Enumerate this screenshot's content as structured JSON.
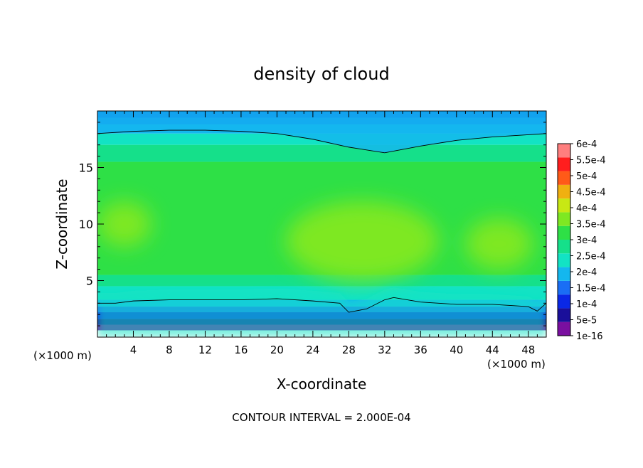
{
  "chart_data": {
    "type": "heatmap",
    "title": "density of cloud",
    "xlabel": "X-coordinate",
    "ylabel": "Z-coordinate",
    "x_unit_left": "(×1000 m)",
    "x_unit_right": "(×1000 m)",
    "footer": "CONTOUR INTERVAL = 2.000E-04",
    "xlim": [
      0,
      50
    ],
    "ylim": [
      0,
      20
    ],
    "x_ticks": [
      4,
      8,
      12,
      16,
      20,
      24,
      28,
      32,
      36,
      40,
      44,
      48
    ],
    "y_ticks": [
      5,
      10,
      15
    ],
    "colorbar": {
      "labels": [
        "1e-16",
        "5e-5",
        "1e-4",
        "1.5e-4",
        "2e-4",
        "2.5e-4",
        "3e-4",
        "3.5e-4",
        "4e-4",
        "4.5e-4",
        "5e-4",
        "5.5e-4",
        "6e-4"
      ],
      "colors": [
        "#7a0fa0",
        "#1a0f9a",
        "#0a28e6",
        "#1a6ef5",
        "#14b7ee",
        "#12e3c4",
        "#15e08a",
        "#2ee046",
        "#7ee822",
        "#c8e814",
        "#f0b010",
        "#ff5a18",
        "#ff1e1e",
        "#ff7f7f"
      ]
    },
    "contour_lines": [
      {
        "level": "2e-4",
        "x": [
          0,
          4,
          8,
          12,
          16,
          20,
          24,
          28,
          32,
          36,
          40,
          44,
          48,
          50
        ],
        "y": [
          18.0,
          18.2,
          18.3,
          18.3,
          18.2,
          18.0,
          17.5,
          16.8,
          16.3,
          16.9,
          17.4,
          17.7,
          17.9,
          18.0
        ]
      },
      {
        "level": "2e-4",
        "x": [
          0,
          2,
          4,
          8,
          12,
          16,
          20,
          24,
          27,
          28,
          30,
          32,
          33,
          36,
          40,
          44,
          48,
          49,
          50
        ],
        "y": [
          3.0,
          3.0,
          3.2,
          3.3,
          3.3,
          3.3,
          3.4,
          3.2,
          3.0,
          2.2,
          2.5,
          3.3,
          3.5,
          3.1,
          2.9,
          2.9,
          2.7,
          2.3,
          3.0
        ]
      }
    ],
    "field_regions": [
      {
        "level": "4e-4",
        "x": [
          25.0,
          31.5
        ],
        "y": [
          6.0,
          10.8
        ]
      },
      {
        "level": "3.5e-4",
        "x": [
          21.0,
          38.0
        ],
        "y": [
          5.0,
          12.0
        ]
      },
      {
        "level": "3.5e-4",
        "x": [
          0,
          6.0
        ],
        "y": [
          8.0,
          12.0
        ]
      },
      {
        "level": "3.5e-4",
        "x": [
          41.0,
          48.5
        ],
        "y": [
          6.0,
          10.5
        ]
      }
    ]
  }
}
